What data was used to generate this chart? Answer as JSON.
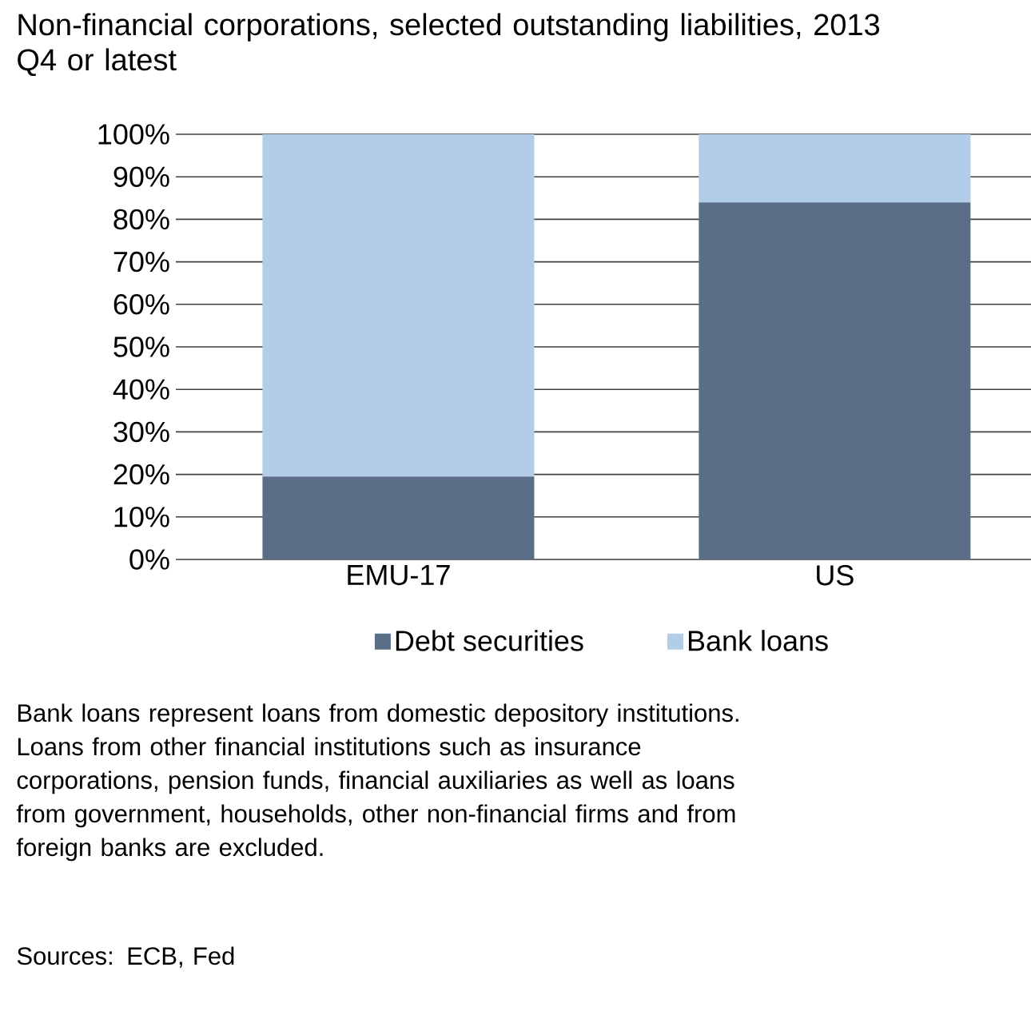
{
  "chart_data": {
    "type": "bar",
    "title": "Non-financial corporations, selected outstanding liabilities, 2013 Q4 or latest",
    "categories": [
      "EMU-17",
      "US"
    ],
    "stacked": true,
    "series": [
      {
        "name": "Debt securities",
        "color": "#5a6f87",
        "values": [
          19.5,
          84
        ]
      },
      {
        "name": "Bank loans",
        "color": "#b3cde9",
        "values": [
          80.5,
          16
        ]
      }
    ],
    "ylim": [
      0,
      100
    ],
    "yticks": [
      {
        "value": 0,
        "label": "0%"
      },
      {
        "value": 10,
        "label": "10%"
      },
      {
        "value": 20,
        "label": "20%"
      },
      {
        "value": 30,
        "label": "30%"
      },
      {
        "value": 40,
        "label": "40%"
      },
      {
        "value": 50,
        "label": "50%"
      },
      {
        "value": 60,
        "label": "60%"
      },
      {
        "value": 70,
        "label": "70%"
      },
      {
        "value": 80,
        "label": "80%"
      },
      {
        "value": 90,
        "label": "90%"
      },
      {
        "value": 100,
        "label": "100%"
      }
    ],
    "grid": "y",
    "legend": "bottom",
    "annotations": [
      "Bank loans represent loans from domestic depository institutions. Loans from other financial institutions such as insurance corporations, pension funds, financial auxiliaries as well as loans from government, households, other non-financial firms and from foreign banks are excluded.",
      "Sources: ECB, Fed"
    ]
  }
}
